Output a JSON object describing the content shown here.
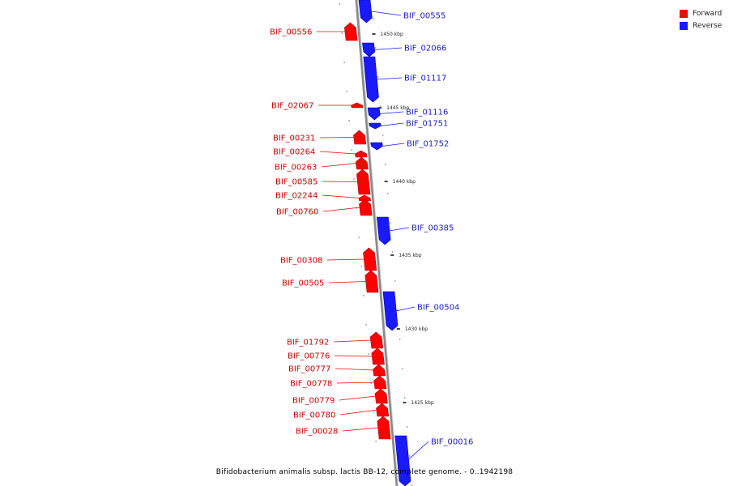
{
  "colors": {
    "forward": "#ff0000",
    "reverse": "#1a1aff",
    "forward_label": "#cc0000",
    "reverse_label": "#1a1acc",
    "backbone": "#8a8a8a"
  },
  "legend": {
    "forward": "Forward",
    "reverse": "Reverse"
  },
  "caption": "Bifidobacterium animalis subsp. lactis BB-12, complete genome. - 0..1942198",
  "ticks": [
    "1450 kbp",
    "1445 kbp",
    "1440 kbp",
    "1435 kbp",
    "1430 kbp",
    "1425 kbp"
  ],
  "genes": [
    {
      "name": "BIF_00555",
      "strand": "reverse"
    },
    {
      "name": "BIF_00556",
      "strand": "forward"
    },
    {
      "name": "BIF_02066",
      "strand": "reverse"
    },
    {
      "name": "BIF_01117",
      "strand": "reverse"
    },
    {
      "name": "BIF_02067",
      "strand": "forward"
    },
    {
      "name": "BIF_01116",
      "strand": "reverse"
    },
    {
      "name": "BIF_01751",
      "strand": "reverse"
    },
    {
      "name": "BIF_01752",
      "strand": "reverse"
    },
    {
      "name": "BIF_00231",
      "strand": "forward"
    },
    {
      "name": "BIF_00264",
      "strand": "forward"
    },
    {
      "name": "BIF_00263",
      "strand": "forward"
    },
    {
      "name": "BIF_00585",
      "strand": "forward"
    },
    {
      "name": "BIF_02244",
      "strand": "forward"
    },
    {
      "name": "BIF_00760",
      "strand": "forward"
    },
    {
      "name": "BIF_00385",
      "strand": "reverse"
    },
    {
      "name": "BIF_00308",
      "strand": "forward"
    },
    {
      "name": "BIF_00505",
      "strand": "forward"
    },
    {
      "name": "BIF_00504",
      "strand": "reverse"
    },
    {
      "name": "BIF_01792",
      "strand": "forward"
    },
    {
      "name": "BIF_00776",
      "strand": "forward"
    },
    {
      "name": "BIF_00777",
      "strand": "forward"
    },
    {
      "name": "BIF_00778",
      "strand": "forward"
    },
    {
      "name": "BIF_00779",
      "strand": "forward"
    },
    {
      "name": "BIF_00780",
      "strand": "forward"
    },
    {
      "name": "BIF_00028",
      "strand": "forward"
    },
    {
      "name": "BIF_00016",
      "strand": "reverse"
    }
  ]
}
